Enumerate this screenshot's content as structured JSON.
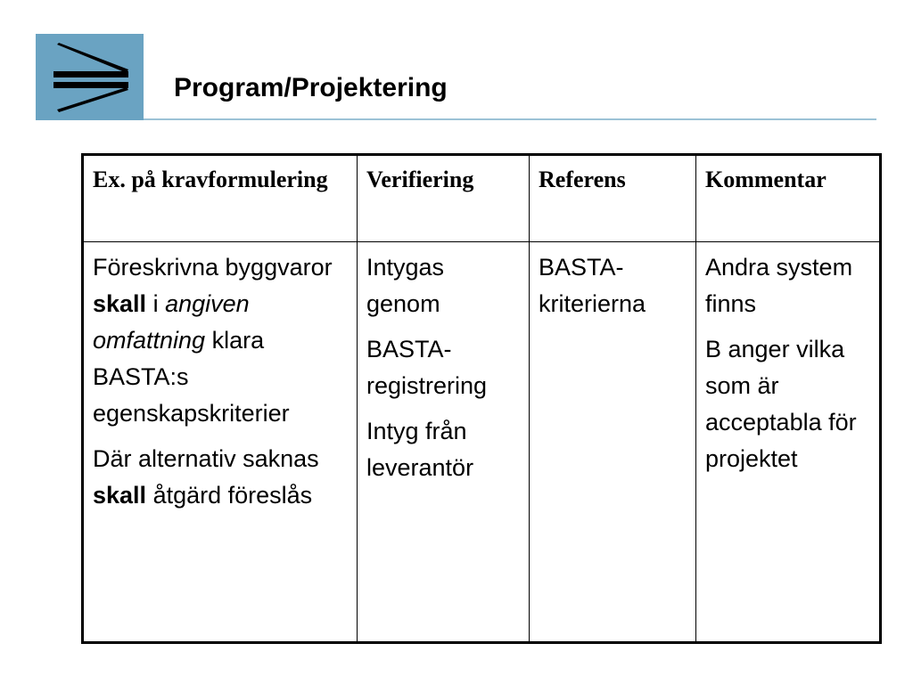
{
  "slide": {
    "title": "Program/Projektering",
    "logo_icon": "double-arrow-right-logo",
    "accent_color": "#6aa3c2"
  },
  "table": {
    "headers": [
      "Ex. på kravformulering",
      "Verifiering",
      "Referens",
      "Kommentar"
    ],
    "col1": {
      "p1_a": "Föreskrivna byggvaror ",
      "p1_b": "skall",
      "p1_c": " i ",
      "p1_d": "angiven omfattning",
      "p1_e": " klara BASTA:s egenskapskriterier",
      "p2_a": "Där alternativ saknas ",
      "p2_b": "skall",
      "p2_c": " åtgärd föreslås"
    },
    "col2": [
      "Intygas genom",
      "BASTA-registrering",
      "Intyg från leverantör"
    ],
    "col3": [
      "BASTA-kriterierna"
    ],
    "col4": [
      "Andra system finns",
      "B anger vilka som är acceptabla för projektet"
    ]
  }
}
